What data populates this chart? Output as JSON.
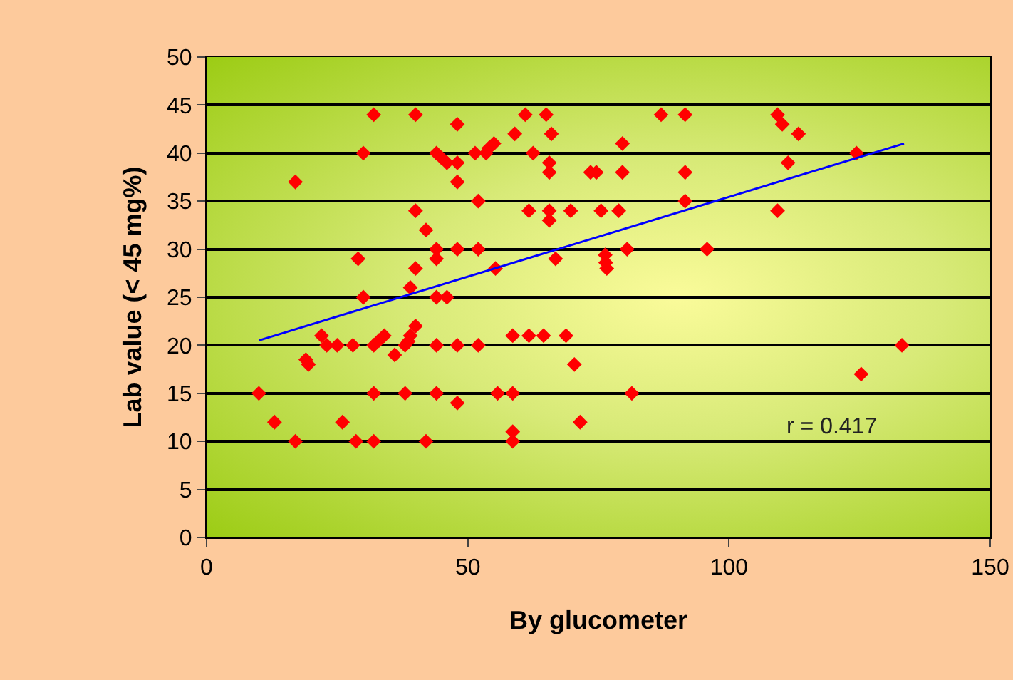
{
  "chart_data": {
    "type": "scatter",
    "xlabel": "By glucometer",
    "ylabel": "Lab value (< 45 mg%)",
    "xlim": [
      0,
      150
    ],
    "xticks": [
      0,
      50,
      100,
      150
    ],
    "ylim": [
      0,
      50
    ],
    "yticks": [
      0,
      5,
      10,
      15,
      20,
      25,
      30,
      35,
      40,
      45,
      50
    ],
    "grid": "y",
    "annotations": [
      "r = 0.417"
    ],
    "series": [
      {
        "color": "#ff0000",
        "marker": "diamond",
        "x": [
          32,
          40,
          48,
          30,
          44,
          45,
          46,
          48,
          51.4,
          17,
          48,
          52,
          40,
          42,
          29,
          44,
          44,
          48,
          52,
          40,
          30,
          39,
          44,
          46,
          40,
          39,
          38.6,
          38,
          22,
          23,
          25,
          28,
          32,
          33,
          34,
          36,
          19,
          19.5,
          44,
          48,
          52,
          10,
          32,
          38,
          44,
          48,
          13,
          26,
          17,
          28.6,
          32,
          42,
          61,
          65,
          59,
          66,
          55,
          54,
          53.5,
          62.5,
          65.6,
          65.6,
          73.5,
          74.6,
          79.6,
          79.6,
          91.6,
          87,
          91.6,
          91.6,
          61.7,
          65.6,
          65.6,
          69.7,
          75.5,
          78.9,
          55.3,
          66.8,
          76.3,
          76.4,
          76.6,
          80.5,
          95.8,
          58.6,
          61.7,
          64.5,
          68.8,
          70.4,
          55.7,
          58.6,
          81.4,
          71.5,
          58.6,
          58.6,
          109.3,
          110.2,
          113.3,
          111.3,
          124.4,
          109.3,
          133.1,
          125.3
        ],
        "values": [
          44,
          44,
          43,
          40,
          40,
          39.5,
          39,
          39,
          40,
          37,
          37,
          35,
          34,
          32,
          29,
          30,
          29,
          30,
          30,
          28,
          25,
          26,
          25,
          25,
          22,
          21,
          20.4,
          20,
          21,
          20,
          20,
          20,
          20,
          20.5,
          21,
          19,
          18.5,
          18,
          20,
          20,
          20,
          15,
          15,
          15,
          15,
          14,
          12,
          12,
          10,
          10,
          10,
          10,
          44,
          44,
          42,
          42,
          41,
          40.5,
          40,
          40,
          39,
          38,
          38,
          38,
          41,
          38,
          38,
          44,
          44,
          35,
          34,
          34,
          33,
          34,
          34,
          34,
          28,
          29,
          29.4,
          28.6,
          28,
          30,
          30,
          21,
          21,
          21,
          21,
          18,
          15,
          15,
          15,
          12,
          11,
          10,
          44,
          43,
          42,
          39,
          40,
          34,
          20,
          17
        ]
      },
      {
        "type": "line",
        "color": "#0000ff",
        "x": [
          10,
          133.5
        ],
        "values": [
          20.5,
          41
        ],
        "line_style": "solid",
        "marker": "none"
      }
    ]
  }
}
